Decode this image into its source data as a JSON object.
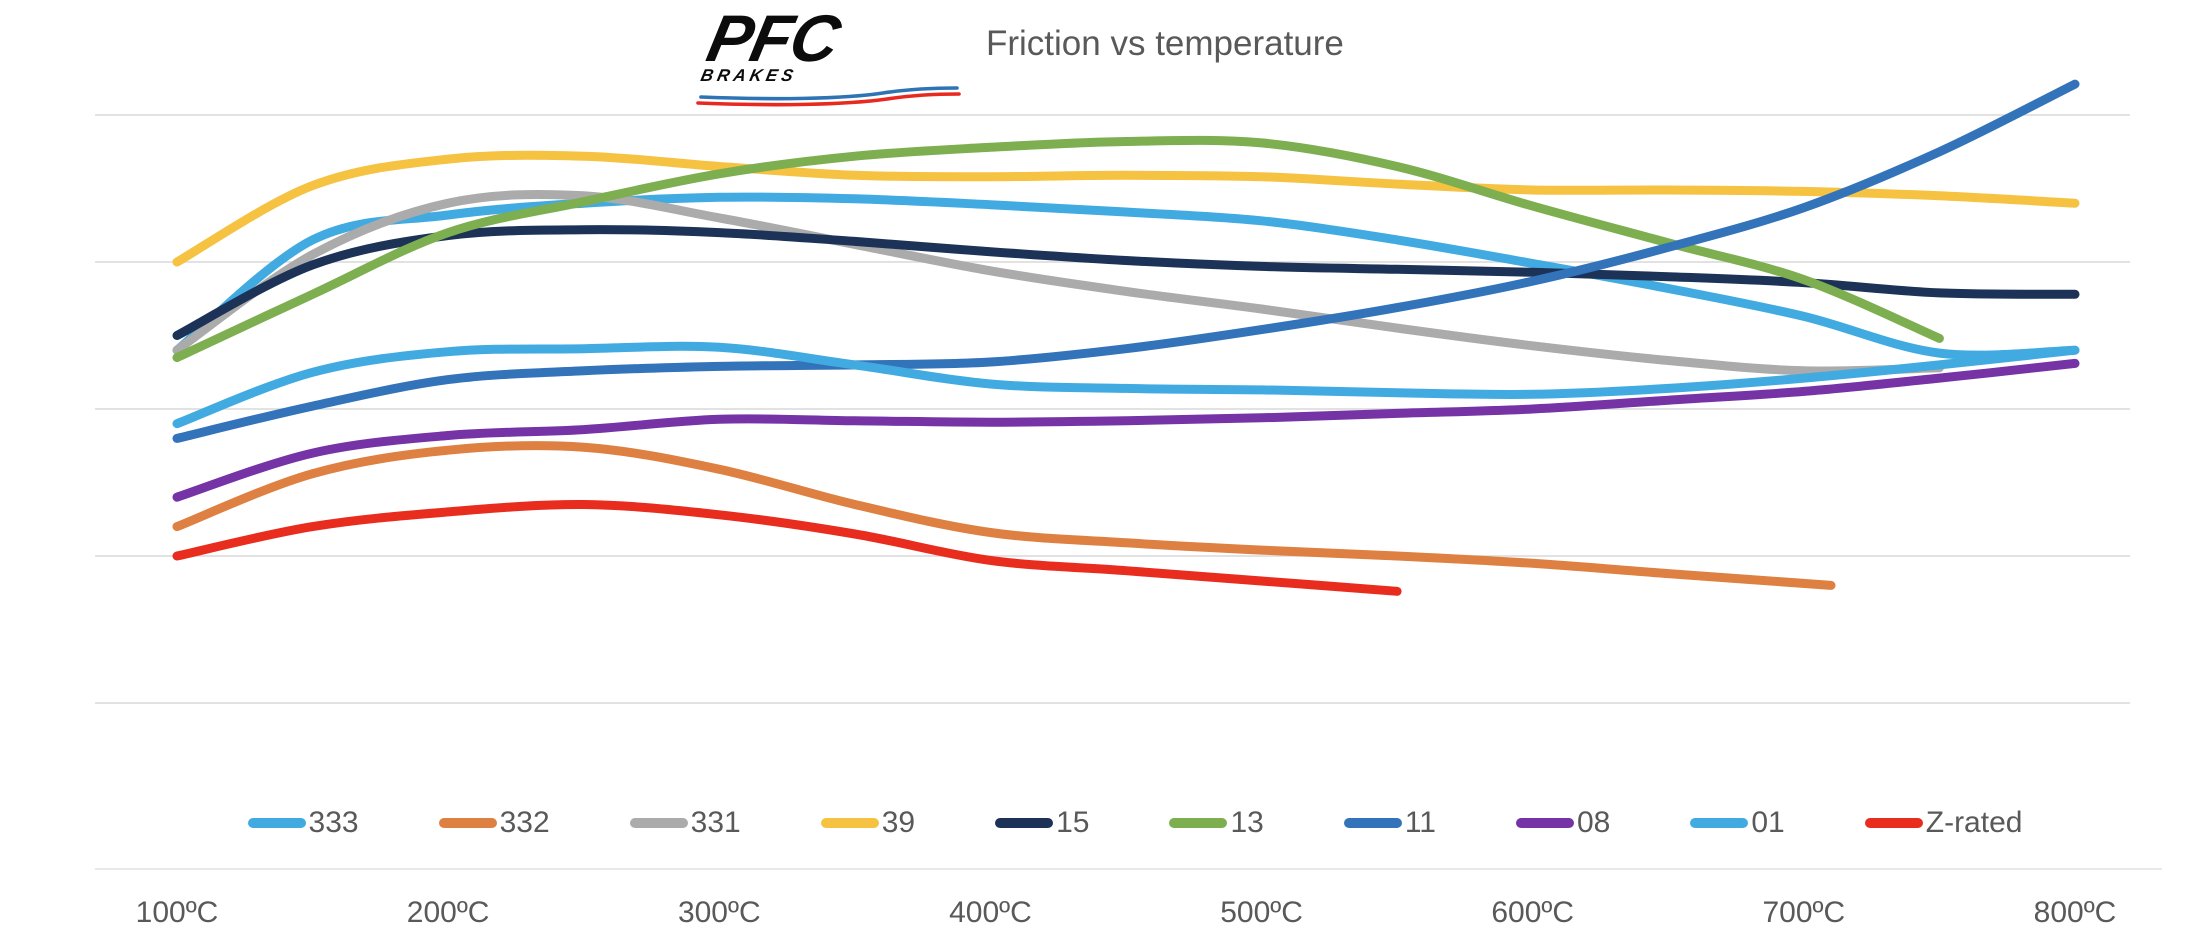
{
  "header": {
    "logo_text": "PFC",
    "logo_subtext": "BRAKES",
    "title": "Friction vs temperature"
  },
  "chart_data": {
    "type": "line",
    "title": "Friction vs temperature",
    "xlabel": "",
    "ylabel": "",
    "x_range": [
      100,
      800
    ],
    "x_ticks": [
      "100ºC",
      "200ºC",
      "300ºC",
      "400ºC",
      "500ºC",
      "600ºC",
      "700ºC",
      "800ºC"
    ],
    "y_axis": {
      "labels_visible": false,
      "assumed_quantity": "friction coefficient (estimated, axis unlabeled)",
      "gridlines_at": [
        0.6,
        0.5,
        0.4,
        0.3,
        0.2
      ],
      "ylim": [
        0.15,
        0.65
      ]
    },
    "legend_position": "bottom",
    "grid": true,
    "colors": {
      "gridline": "#D9D9D9",
      "baseline": "#E2E2E2",
      "text": "#595959",
      "logo_blue": "#2E74B5",
      "logo_red": "#E8291F"
    },
    "series": [
      {
        "name": "333",
        "color": "#41ABE1",
        "points": [
          [
            100,
            0.44
          ],
          [
            150,
            0.515
          ],
          [
            200,
            0.532
          ],
          [
            250,
            0.54
          ],
          [
            300,
            0.544
          ],
          [
            350,
            0.543
          ],
          [
            400,
            0.539
          ],
          [
            450,
            0.534
          ],
          [
            500,
            0.528
          ],
          [
            550,
            0.515
          ],
          [
            600,
            0.499
          ],
          [
            650,
            0.482
          ],
          [
            700,
            0.463
          ],
          [
            750,
            0.438
          ],
          [
            800,
            0.44
          ]
        ]
      },
      {
        "name": "332",
        "color": "#DD8041",
        "points": [
          [
            100,
            0.32
          ],
          [
            150,
            0.356
          ],
          [
            200,
            0.372
          ],
          [
            250,
            0.374
          ],
          [
            300,
            0.359
          ],
          [
            350,
            0.335
          ],
          [
            400,
            0.316
          ],
          [
            450,
            0.309
          ],
          [
            500,
            0.304
          ],
          [
            550,
            0.3
          ],
          [
            600,
            0.295
          ],
          [
            650,
            0.288
          ],
          [
            710,
            0.28
          ]
        ]
      },
      {
        "name": "331",
        "color": "#ABABAB",
        "points": [
          [
            100,
            0.44
          ],
          [
            150,
            0.505
          ],
          [
            200,
            0.54
          ],
          [
            250,
            0.545
          ],
          [
            300,
            0.53
          ],
          [
            350,
            0.512
          ],
          [
            400,
            0.494
          ],
          [
            450,
            0.48
          ],
          [
            500,
            0.468
          ],
          [
            550,
            0.455
          ],
          [
            600,
            0.443
          ],
          [
            650,
            0.433
          ],
          [
            700,
            0.426
          ],
          [
            750,
            0.428
          ]
        ]
      },
      {
        "name": "39",
        "color": "#F6C242",
        "points": [
          [
            100,
            0.5
          ],
          [
            150,
            0.552
          ],
          [
            200,
            0.57
          ],
          [
            250,
            0.572
          ],
          [
            300,
            0.565
          ],
          [
            350,
            0.559
          ],
          [
            400,
            0.558
          ],
          [
            450,
            0.559
          ],
          [
            500,
            0.558
          ],
          [
            550,
            0.553
          ],
          [
            600,
            0.549
          ],
          [
            650,
            0.549
          ],
          [
            700,
            0.548
          ],
          [
            750,
            0.545
          ],
          [
            800,
            0.54
          ]
        ]
      },
      {
        "name": "15",
        "color": "#1C3257",
        "points": [
          [
            100,
            0.45
          ],
          [
            150,
            0.498
          ],
          [
            200,
            0.518
          ],
          [
            250,
            0.522
          ],
          [
            300,
            0.52
          ],
          [
            350,
            0.514
          ],
          [
            400,
            0.507
          ],
          [
            450,
            0.501
          ],
          [
            500,
            0.497
          ],
          [
            550,
            0.495
          ],
          [
            600,
            0.493
          ],
          [
            650,
            0.49
          ],
          [
            700,
            0.486
          ],
          [
            750,
            0.479
          ],
          [
            800,
            0.478
          ]
        ]
      },
      {
        "name": "13",
        "color": "#7DAE50",
        "points": [
          [
            100,
            0.435
          ],
          [
            150,
            0.478
          ],
          [
            200,
            0.52
          ],
          [
            250,
            0.541
          ],
          [
            300,
            0.56
          ],
          [
            350,
            0.572
          ],
          [
            400,
            0.578
          ],
          [
            450,
            0.582
          ],
          [
            500,
            0.581
          ],
          [
            550,
            0.565
          ],
          [
            600,
            0.538
          ],
          [
            650,
            0.513
          ],
          [
            700,
            0.488
          ],
          [
            750,
            0.448
          ]
        ]
      },
      {
        "name": "11",
        "color": "#3273BA",
        "points": [
          [
            100,
            0.38
          ],
          [
            150,
            0.402
          ],
          [
            200,
            0.42
          ],
          [
            250,
            0.426
          ],
          [
            300,
            0.429
          ],
          [
            350,
            0.43
          ],
          [
            400,
            0.432
          ],
          [
            450,
            0.441
          ],
          [
            500,
            0.454
          ],
          [
            550,
            0.469
          ],
          [
            600,
            0.487
          ],
          [
            650,
            0.51
          ],
          [
            700,
            0.537
          ],
          [
            750,
            0.575
          ],
          [
            800,
            0.621
          ]
        ]
      },
      {
        "name": "08",
        "color": "#7533A6",
        "points": [
          [
            100,
            0.34
          ],
          [
            150,
            0.37
          ],
          [
            200,
            0.382
          ],
          [
            250,
            0.386
          ],
          [
            300,
            0.393
          ],
          [
            350,
            0.392
          ],
          [
            400,
            0.391
          ],
          [
            450,
            0.392
          ],
          [
            500,
            0.394
          ],
          [
            550,
            0.397
          ],
          [
            600,
            0.4
          ],
          [
            650,
            0.406
          ],
          [
            700,
            0.412
          ],
          [
            750,
            0.421
          ],
          [
            800,
            0.431
          ]
        ]
      },
      {
        "name": "01",
        "color": "#41ABE1",
        "points": [
          [
            100,
            0.39
          ],
          [
            150,
            0.425
          ],
          [
            200,
            0.439
          ],
          [
            250,
            0.441
          ],
          [
            300,
            0.442
          ],
          [
            350,
            0.43
          ],
          [
            400,
            0.417
          ],
          [
            450,
            0.414
          ],
          [
            500,
            0.413
          ],
          [
            550,
            0.411
          ],
          [
            600,
            0.41
          ],
          [
            650,
            0.414
          ],
          [
            700,
            0.421
          ],
          [
            750,
            0.43
          ],
          [
            800,
            0.44
          ]
        ]
      },
      {
        "name": "Z-rated",
        "color": "#E82C1E",
        "points": [
          [
            100,
            0.3
          ],
          [
            150,
            0.32
          ],
          [
            200,
            0.33
          ],
          [
            250,
            0.335
          ],
          [
            300,
            0.328
          ],
          [
            350,
            0.315
          ],
          [
            400,
            0.297
          ],
          [
            450,
            0.29
          ],
          [
            500,
            0.283
          ],
          [
            550,
            0.276
          ]
        ]
      }
    ]
  }
}
